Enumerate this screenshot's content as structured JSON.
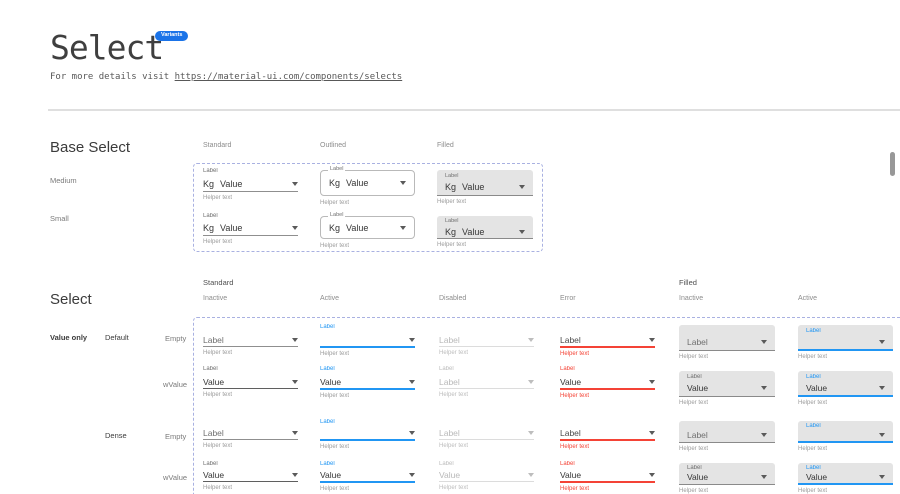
{
  "header": {
    "title": "Select",
    "badge": "Variants",
    "subtitle_prefix": "For more details visit ",
    "subtitle_link": "https://material-ui.com/components/selects"
  },
  "base_select": {
    "heading": "Base Select",
    "column_headers": [
      "Standard",
      "Outlined",
      "Filled"
    ],
    "row_labels": [
      "Medium",
      "Small"
    ],
    "field": {
      "label": "Label",
      "adornment": "Kg",
      "value": "Value",
      "helper": "Helper text"
    }
  },
  "select_grid": {
    "heading": "Select",
    "group_headers": [
      "Standard",
      "Filled"
    ],
    "state_headers": [
      "Inactive",
      "Active",
      "Disabled",
      "Error",
      "Inactive",
      "Active"
    ],
    "row_group_label": "Value only",
    "size_labels": [
      "Default",
      "Dense"
    ],
    "kind_labels": [
      "Empty",
      "wValue"
    ],
    "rows": [
      {
        "size": "Default",
        "kind": "Empty",
        "cells": [
          {
            "variant": "standard",
            "state": "inactive",
            "float_label": "",
            "display": "Label",
            "display_role": "placeholder",
            "helper": "Helper text"
          },
          {
            "variant": "standard",
            "state": "active",
            "float_label": "Label",
            "display": "",
            "display_role": "value",
            "helper": "Helper text"
          },
          {
            "variant": "standard",
            "state": "disabled",
            "float_label": "",
            "display": "Label",
            "display_role": "placeholder",
            "helper": "Helper text"
          },
          {
            "variant": "standard",
            "state": "error",
            "float_label": "",
            "display": "Label",
            "display_role": "placeholder",
            "helper": "Helper text"
          },
          {
            "variant": "filled",
            "state": "inactive",
            "float_label": "",
            "display": "Label",
            "display_role": "placeholder",
            "helper": "Helper text"
          },
          {
            "variant": "filled",
            "state": "active",
            "float_label": "Label",
            "display": "",
            "display_role": "value",
            "helper": "Helper text"
          }
        ]
      },
      {
        "size": "Default",
        "kind": "wValue",
        "cells": [
          {
            "variant": "standard",
            "state": "inactive",
            "float_label": "Label",
            "display": "Value",
            "display_role": "value",
            "helper": "Helper text"
          },
          {
            "variant": "standard",
            "state": "active",
            "float_label": "Label",
            "display": "Value",
            "display_role": "value",
            "helper": "Helper text"
          },
          {
            "variant": "standard",
            "state": "disabled",
            "float_label": "Label",
            "display": "Label",
            "display_role": "disabled",
            "helper": "Helper text"
          },
          {
            "variant": "standard",
            "state": "error",
            "float_label": "Label",
            "display": "Value",
            "display_role": "value",
            "helper": "Helper text"
          },
          {
            "variant": "filled",
            "state": "inactive",
            "float_label": "Label",
            "display": "Value",
            "display_role": "value",
            "helper": "Helper text"
          },
          {
            "variant": "filled",
            "state": "active",
            "float_label": "Label",
            "display": "Value",
            "display_role": "value",
            "helper": "Helper text"
          }
        ]
      },
      {
        "size": "Dense",
        "kind": "Empty",
        "cells": [
          {
            "variant": "standard",
            "state": "inactive",
            "float_label": "",
            "display": "Label",
            "display_role": "placeholder",
            "helper": "Helper text"
          },
          {
            "variant": "standard",
            "state": "active",
            "float_label": "Label",
            "display": "",
            "display_role": "value",
            "helper": "Helper text"
          },
          {
            "variant": "standard",
            "state": "disabled",
            "float_label": "",
            "display": "Label",
            "display_role": "placeholder",
            "helper": "Helper text"
          },
          {
            "variant": "standard",
            "state": "error",
            "float_label": "",
            "display": "Label",
            "display_role": "placeholder",
            "helper": "Helper text"
          },
          {
            "variant": "filled",
            "state": "inactive",
            "float_label": "",
            "display": "Label",
            "display_role": "placeholder",
            "helper": "Helper text"
          },
          {
            "variant": "filled",
            "state": "active",
            "float_label": "Label",
            "display": "",
            "display_role": "value",
            "helper": "Helper text"
          }
        ]
      },
      {
        "size": "Dense",
        "kind": "wValue",
        "cells": [
          {
            "variant": "standard",
            "state": "inactive",
            "float_label": "Label",
            "display": "Value",
            "display_role": "value",
            "helper": "Helper text"
          },
          {
            "variant": "standard",
            "state": "active",
            "float_label": "Label",
            "display": "Value",
            "display_role": "value",
            "helper": "Helper text"
          },
          {
            "variant": "standard",
            "state": "disabled",
            "float_label": "Label",
            "display": "Value",
            "display_role": "disabled",
            "helper": "Helper text"
          },
          {
            "variant": "standard",
            "state": "error",
            "float_label": "Label",
            "display": "Value",
            "display_role": "value",
            "helper": "Helper text"
          },
          {
            "variant": "filled",
            "state": "inactive",
            "float_label": "Label",
            "display": "Value",
            "display_role": "value",
            "helper": "Helper text"
          },
          {
            "variant": "filled",
            "state": "active",
            "float_label": "Label",
            "display": "Value",
            "display_role": "value",
            "helper": "Helper text"
          }
        ]
      }
    ]
  },
  "colors": {
    "accent_blue": "#2196f3",
    "badge_blue": "#1a73e8",
    "error_red": "#f44336",
    "dashed_border": "#a9b1e1",
    "filled_bg": "#e4e4e4"
  }
}
